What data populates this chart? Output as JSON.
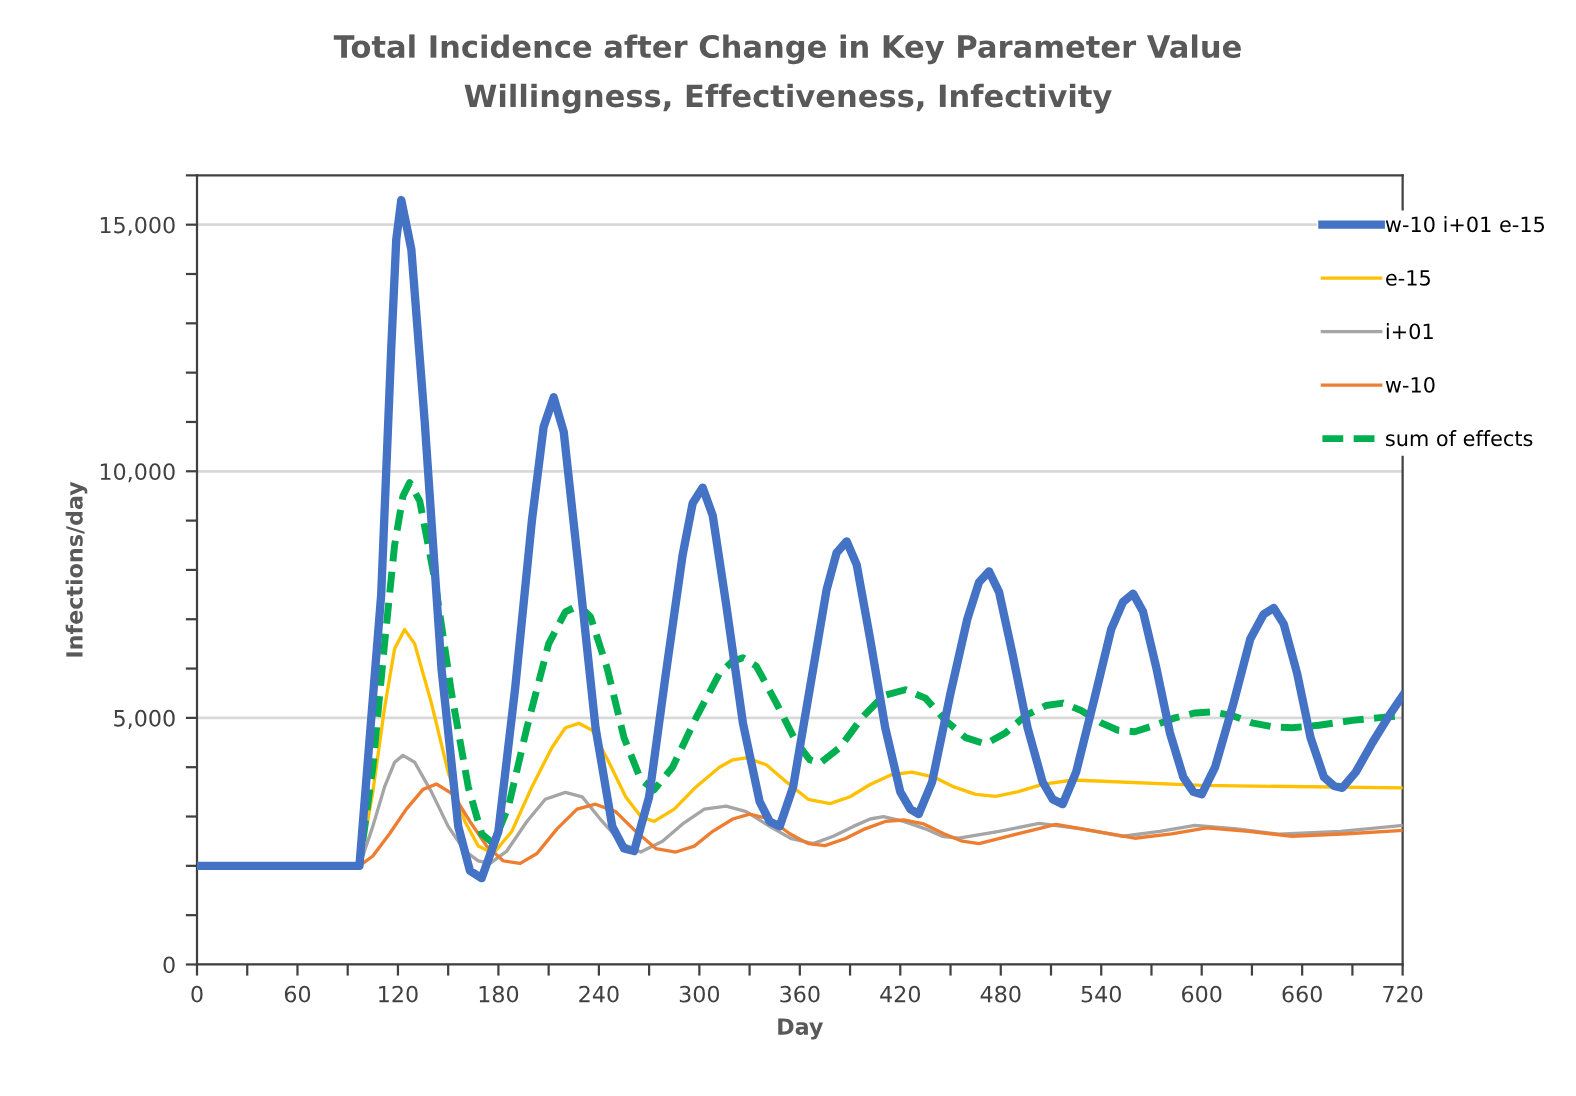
{
  "chart_data": {
    "type": "line",
    "title": "Total Incidence after Change in Key Parameter Value",
    "subtitle": "Willingness, Effectiveness, Infectivity",
    "xlabel": "Day",
    "ylabel": "Infections/day",
    "xlim": [
      0,
      720
    ],
    "ylim": [
      0,
      16000
    ],
    "xticks": [
      0,
      {
        "value": 30,
        "label": null
      },
      60,
      {
        "value": 90,
        "label": null
      },
      120,
      {
        "value": 150,
        "label": null
      },
      180,
      {
        "value": 210,
        "label": null
      },
      240,
      {
        "value": 270,
        "label": null
      },
      300,
      {
        "value": 330,
        "label": null
      },
      360,
      {
        "value": 390,
        "label": null
      },
      420,
      {
        "value": 450,
        "label": null
      },
      480,
      {
        "value": 510,
        "label": null
      },
      540,
      {
        "value": 570,
        "label": null
      },
      600,
      {
        "value": 630,
        "label": null
      },
      660,
      {
        "value": 690,
        "label": null
      },
      720
    ],
    "yticks": [
      {
        "value": 0,
        "label": "0"
      },
      {
        "value": 1000,
        "label": null
      },
      {
        "value": 2000,
        "label": null
      },
      {
        "value": 3000,
        "label": null
      },
      {
        "value": 4000,
        "label": null
      },
      {
        "value": 5000,
        "label": "5,000"
      },
      {
        "value": 6000,
        "label": null
      },
      {
        "value": 7000,
        "label": null
      },
      {
        "value": 8000,
        "label": null
      },
      {
        "value": 9000,
        "label": null
      },
      {
        "value": 10000,
        "label": "10,000"
      },
      {
        "value": 11000,
        "label": null
      },
      {
        "value": 12000,
        "label": null
      },
      {
        "value": 13000,
        "label": null
      },
      {
        "value": 14000,
        "label": null
      },
      {
        "value": 15000,
        "label": "15,000"
      },
      {
        "value": 16000,
        "label": null
      }
    ],
    "grid": "y",
    "legend": "right",
    "marker": "none",
    "series": [
      {
        "name": "w-10 i+01 e-15",
        "color": "#4472c4",
        "line_style": "solid",
        "x": [
          0,
          97,
          110,
          116,
          119,
          122,
          128,
          136,
          146,
          156,
          163,
          170,
          180,
          190,
          200,
          207,
          213,
          219,
          228,
          238,
          248,
          255,
          261,
          270,
          280,
          290,
          296,
          302,
          308,
          316,
          326,
          336,
          342,
          348,
          356,
          366,
          376,
          382,
          388,
          394,
          402,
          411,
          420,
          426,
          431,
          439,
          450,
          460,
          467,
          473,
          479,
          487,
          496,
          505,
          511,
          517,
          525,
          536,
          546,
          553,
          559,
          565,
          573,
          581,
          589,
          595,
          600,
          608,
          619,
          629,
          637,
          643,
          649,
          657,
          665,
          673,
          679,
          684,
          692,
          702,
          712,
          720
        ],
        "values": [
          2000,
          2000,
          7500,
          12500,
          14700,
          15500,
          14500,
          11000,
          6000,
          2800,
          1900,
          1750,
          2700,
          5600,
          9000,
          10900,
          11500,
          10800,
          8000,
          4800,
          2800,
          2350,
          2300,
          3400,
          5900,
          8300,
          9350,
          9670,
          9100,
          7300,
          4900,
          3300,
          2900,
          2800,
          3600,
          5600,
          7600,
          8350,
          8580,
          8100,
          6600,
          4800,
          3500,
          3150,
          3050,
          3700,
          5500,
          7000,
          7750,
          7970,
          7550,
          6300,
          4800,
          3700,
          3350,
          3250,
          3900,
          5400,
          6800,
          7350,
          7520,
          7150,
          6000,
          4700,
          3800,
          3500,
          3450,
          4000,
          5300,
          6600,
          7100,
          7230,
          6900,
          5900,
          4600,
          3800,
          3620,
          3580,
          3900,
          4500,
          5050,
          5450
        ]
      },
      {
        "name": "e-15",
        "color": "#ffc000",
        "line_style": "solid",
        "x": [
          0,
          97,
          105,
          112,
          118,
          124,
          130,
          140,
          150,
          160,
          168,
          177,
          188,
          200,
          212,
          220,
          228,
          236,
          246,
          256,
          265,
          273,
          285,
          298,
          312,
          320,
          328,
          340,
          352,
          365,
          378,
          390,
          402,
          415,
          427,
          440,
          452,
          465,
          477,
          490,
          505,
          523,
          600,
          720
        ],
        "values": [
          2000,
          2000,
          3500,
          5200,
          6400,
          6790,
          6500,
          5300,
          3900,
          2900,
          2400,
          2250,
          2700,
          3600,
          4400,
          4800,
          4890,
          4750,
          4100,
          3400,
          3000,
          2900,
          3150,
          3600,
          4000,
          4150,
          4190,
          4050,
          3700,
          3350,
          3260,
          3400,
          3650,
          3850,
          3900,
          3800,
          3600,
          3450,
          3410,
          3500,
          3650,
          3740,
          3630,
          3580
        ]
      },
      {
        "name": "i+01",
        "color": "#a5a5a5",
        "line_style": "solid",
        "x": [
          0,
          97,
          105,
          112,
          118,
          123,
          130,
          140,
          150,
          160,
          168,
          175,
          185,
          197,
          208,
          220,
          230,
          242,
          254,
          265,
          278,
          290,
          303,
          316,
          328,
          342,
          355,
          368,
          380,
          392,
          402,
          410,
          422,
          435,
          445,
          455,
          479,
          503,
          528,
          553,
          575,
          596,
          621,
          646,
          683,
          720
        ],
        "values": [
          2000,
          2000,
          2800,
          3600,
          4100,
          4240,
          4100,
          3500,
          2800,
          2300,
          2100,
          2050,
          2300,
          2900,
          3350,
          3490,
          3400,
          2900,
          2450,
          2280,
          2500,
          2850,
          3150,
          3210,
          3100,
          2800,
          2550,
          2450,
          2600,
          2800,
          2950,
          3000,
          2900,
          2750,
          2600,
          2560,
          2700,
          2860,
          2750,
          2600,
          2700,
          2820,
          2750,
          2640,
          2700,
          2820
        ]
      },
      {
        "name": "w-10",
        "color": "#ed7d31",
        "line_style": "solid",
        "x": [
          0,
          97,
          105,
          115,
          125,
          135,
          143,
          153,
          163,
          173,
          183,
          193,
          203,
          215,
          227,
          238,
          250,
          262,
          274,
          286,
          297,
          308,
          320,
          330,
          342,
          354,
          365,
          375,
          387,
          399,
          411,
          422,
          434,
          446,
          457,
          467,
          490,
          513,
          537,
          560,
          582,
          603,
          628,
          654,
          687,
          720
        ],
        "values": [
          2000,
          2000,
          2200,
          2650,
          3150,
          3550,
          3660,
          3450,
          2900,
          2400,
          2100,
          2050,
          2250,
          2750,
          3150,
          3250,
          3100,
          2700,
          2350,
          2280,
          2400,
          2700,
          2950,
          3050,
          2950,
          2650,
          2450,
          2410,
          2550,
          2750,
          2900,
          2930,
          2850,
          2650,
          2500,
          2450,
          2650,
          2840,
          2700,
          2560,
          2650,
          2770,
          2700,
          2600,
          2650,
          2720
        ]
      },
      {
        "name": "sum of effects",
        "color": "#00b050",
        "line_style": "dashed",
        "x": [
          0,
          97,
          105,
          112,
          118,
          123,
          127,
          133,
          142,
          152,
          162,
          170,
          177,
          186,
          197,
          210,
          220,
          228,
          235,
          245,
          255,
          265,
          273,
          284,
          298,
          312,
          320,
          326,
          334,
          346,
          358,
          366,
          372,
          384,
          397,
          410,
          423,
          435,
          447,
          459,
          471,
          483,
          495,
          507,
          517,
          528,
          540,
          550,
          560,
          572,
          584,
          596,
          606,
          618,
          630,
          642,
          654,
          670,
          690,
          705,
          720
        ],
        "values": [
          2000,
          2000,
          4000,
          6500,
          8500,
          9500,
          9770,
          9400,
          7800,
          5500,
          3600,
          2650,
          2450,
          3200,
          4800,
          6500,
          7150,
          7280,
          7050,
          6000,
          4600,
          3750,
          3540,
          4000,
          5000,
          5900,
          6150,
          6220,
          6050,
          5300,
          4500,
          4150,
          4080,
          4400,
          5000,
          5450,
          5570,
          5400,
          4950,
          4600,
          4470,
          4700,
          5050,
          5250,
          5300,
          5150,
          4900,
          4750,
          4720,
          4850,
          5000,
          5100,
          5120,
          5050,
          4900,
          4820,
          4800,
          4850,
          4950,
          5000,
          5050
        ]
      }
    ]
  }
}
